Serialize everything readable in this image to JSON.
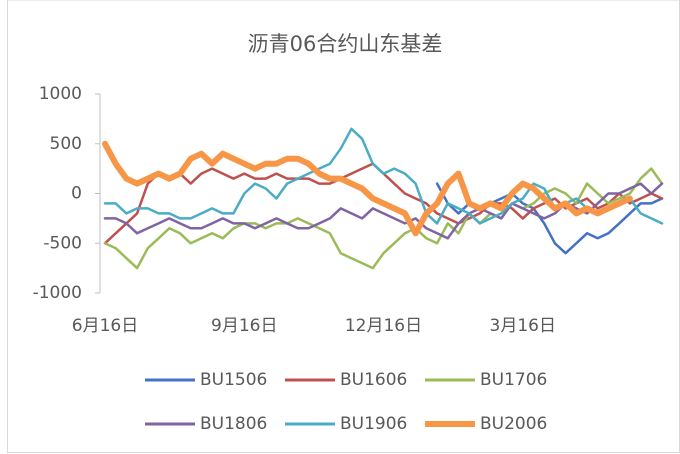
{
  "chart_data": {
    "type": "line",
    "title": "沥青06合约山东基差",
    "categories": [
      "6月16日",
      null,
      null,
      null,
      null,
      null,
      null,
      null,
      null,
      null,
      null,
      null,
      null,
      "9月16日",
      null,
      null,
      null,
      null,
      null,
      null,
      null,
      null,
      null,
      null,
      null,
      null,
      "12月16日",
      null,
      null,
      null,
      null,
      null,
      null,
      null,
      null,
      null,
      null,
      null,
      null,
      "3月16日",
      null,
      null,
      null,
      null,
      null,
      null,
      null,
      null,
      null,
      null,
      null,
      null,
      null
    ],
    "ylim": [
      -1000,
      1000
    ],
    "yticks": [
      -1000,
      -500,
      0,
      500,
      1000
    ],
    "series": [
      {
        "name": "BU1506",
        "color": "#4472c4",
        "values": [
          null,
          null,
          null,
          null,
          null,
          null,
          null,
          null,
          null,
          null,
          null,
          null,
          null,
          null,
          null,
          null,
          null,
          null,
          null,
          null,
          null,
          null,
          null,
          null,
          null,
          null,
          null,
          null,
          null,
          null,
          null,
          100,
          -100,
          -200,
          -100,
          -150,
          -100,
          -50,
          0,
          -100,
          -150,
          -300,
          -500,
          -600,
          -500,
          -400,
          -450,
          -400,
          -300,
          -200,
          -100,
          -100,
          -50
        ]
      },
      {
        "name": "BU1606",
        "color": "#c0504d",
        "values": [
          -500,
          -400,
          -300,
          -200,
          100,
          200,
          150,
          200,
          100,
          200,
          250,
          200,
          150,
          200,
          150,
          150,
          200,
          150,
          150,
          150,
          100,
          100,
          150,
          200,
          250,
          300,
          200,
          100,
          0,
          -50,
          -100,
          -200,
          -250,
          -300,
          -250,
          -200,
          -100,
          -100,
          -150,
          -250,
          -150,
          -100,
          -50,
          -150,
          -100,
          -50,
          -150,
          -100,
          0,
          -100,
          -50,
          0,
          -50
        ]
      },
      {
        "name": "BU1706",
        "color": "#9bbb59",
        "values": [
          -500,
          -550,
          -650,
          -750,
          -550,
          -450,
          -350,
          -400,
          -500,
          -450,
          -400,
          -450,
          -350,
          -300,
          -300,
          -350,
          -300,
          -300,
          -250,
          -300,
          -350,
          -400,
          -600,
          -650,
          -700,
          -750,
          -600,
          -500,
          -400,
          -350,
          -450,
          -500,
          -300,
          -400,
          -200,
          -300,
          -200,
          -250,
          -100,
          -150,
          -100,
          0,
          50,
          0,
          -100,
          100,
          0,
          -100,
          -50,
          0,
          150,
          250,
          100
        ]
      },
      {
        "name": "BU1806",
        "color": "#8064a2",
        "values": [
          -250,
          -250,
          -300,
          -400,
          -350,
          -300,
          -250,
          -300,
          -350,
          -350,
          -300,
          -250,
          -300,
          -300,
          -350,
          -300,
          -250,
          -300,
          -350,
          -350,
          -300,
          -250,
          -150,
          -200,
          -250,
          -150,
          -200,
          -250,
          -300,
          -250,
          -350,
          -400,
          -450,
          -300,
          -200,
          -150,
          -200,
          -250,
          -100,
          -150,
          -200,
          -250,
          -200,
          -100,
          -150,
          -200,
          -100,
          0,
          0,
          50,
          100,
          0,
          100
        ]
      },
      {
        "name": "BU1906",
        "color": "#4bacc6",
        "values": [
          -100,
          -100,
          -200,
          -150,
          -150,
          -200,
          -200,
          -250,
          -250,
          -200,
          -150,
          -200,
          -200,
          0,
          100,
          50,
          -50,
          100,
          150,
          200,
          250,
          300,
          450,
          650,
          550,
          300,
          200,
          250,
          200,
          100,
          -200,
          -300,
          -100,
          -150,
          -200,
          -300,
          -250,
          -200,
          -100,
          -50,
          100,
          50,
          -150,
          -100,
          -50,
          -150,
          -200,
          -150,
          -100,
          -50,
          -200,
          -250,
          -300
        ]
      },
      {
        "name": "BU2006",
        "color": "#f79646",
        "values": [
          500,
          300,
          150,
          100,
          150,
          200,
          150,
          200,
          350,
          400,
          300,
          400,
          350,
          300,
          250,
          300,
          300,
          350,
          350,
          300,
          200,
          150,
          150,
          100,
          50,
          -50,
          -100,
          -150,
          -200,
          -400,
          -200,
          -100,
          100,
          200,
          -100,
          -150,
          -100,
          -150,
          0,
          100,
          50,
          -50,
          -150,
          -100,
          -200,
          -150,
          -200,
          -150,
          -100,
          -50,
          null,
          null,
          null
        ]
      }
    ]
  }
}
